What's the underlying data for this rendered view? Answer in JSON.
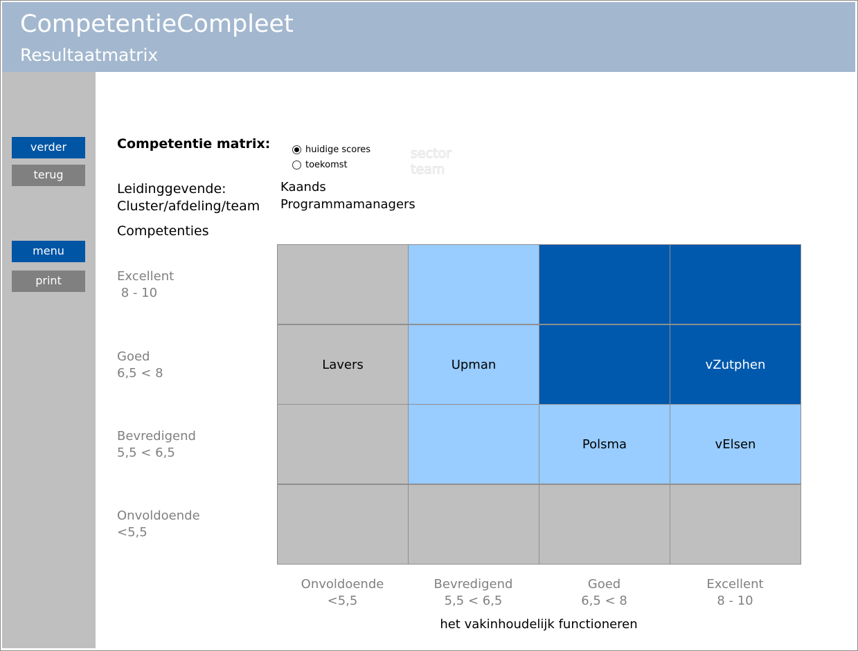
{
  "header": {
    "title": "CompetentieCompleet",
    "subtitle": "Resultaatmatrix"
  },
  "sidebar": {
    "verder": "verder",
    "terug": "terug",
    "menu": "menu",
    "print": "print"
  },
  "form": {
    "title": "Competentie matrix:",
    "options": [
      "huidige scores",
      "toekomst"
    ],
    "selected": "huidige scores",
    "faded": [
      "sector",
      "team"
    ],
    "leidinggevende_label": "Leidinggevende:",
    "leidinggevende_value": "Kaands",
    "cluster_label": "Cluster/afdeling/team",
    "cluster_value": "Programmamanagers",
    "competenties_label": "Competenties"
  },
  "matrix": {
    "colors": {
      "grey": "#bfbfbf",
      "light": "#99ccff",
      "dark": "#0059ad"
    },
    "y_levels": [
      {
        "name": "Excellent",
        "range": " 8 - 10"
      },
      {
        "name": "Goed",
        "range": "6,5 < 8"
      },
      {
        "name": "Bevredigend",
        "range": "5,5 < 6,5"
      },
      {
        "name": "Onvoldoende",
        "range": "<5,5"
      }
    ],
    "x_levels": [
      {
        "name": "Onvoldoende",
        "range": "<5,5"
      },
      {
        "name": "Bevredigend",
        "range": "5,5 < 6,5"
      },
      {
        "name": "Goed",
        "range": "6,5 < 8"
      },
      {
        "name": "Excellent",
        "range": "8 - 10"
      }
    ],
    "x_axis_title": "het vakinhoudelijk functioneren",
    "rows": [
      [
        {
          "color": "grey",
          "text": ""
        },
        {
          "color": "light",
          "text": ""
        },
        {
          "color": "dark",
          "text": ""
        },
        {
          "color": "dark",
          "text": ""
        }
      ],
      [
        {
          "color": "grey",
          "text": "Lavers"
        },
        {
          "color": "light",
          "text": "Upman"
        },
        {
          "color": "dark",
          "text": ""
        },
        {
          "color": "dark",
          "text": "vZutphen"
        }
      ],
      [
        {
          "color": "grey",
          "text": ""
        },
        {
          "color": "light",
          "text": ""
        },
        {
          "color": "light",
          "text": "Polsma"
        },
        {
          "color": "light",
          "text": "vElsen"
        }
      ],
      [
        {
          "color": "grey",
          "text": ""
        },
        {
          "color": "grey",
          "text": ""
        },
        {
          "color": "grey",
          "text": ""
        },
        {
          "color": "grey",
          "text": ""
        }
      ]
    ]
  }
}
